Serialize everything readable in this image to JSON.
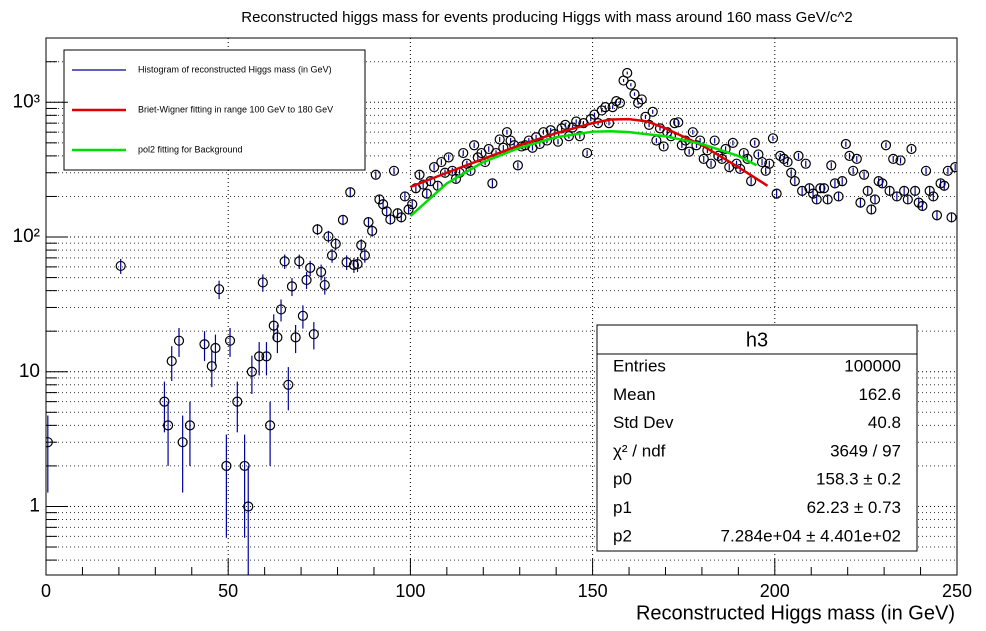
{
  "chart_data": {
    "type": "scatter",
    "title": "Reconstructed higgs mass for events producing Higgs with mass around 160 mass GeV/c^2",
    "x_label": "Reconstructed Higgs mass (in GeV)",
    "xlim": [
      0,
      250
    ],
    "xticks": [
      0,
      50,
      100,
      150,
      200,
      250
    ],
    "xminorticks": [
      10,
      20,
      30,
      40,
      60,
      70,
      80,
      90,
      110,
      120,
      130,
      140,
      160,
      170,
      180,
      190,
      210,
      220,
      230,
      240
    ],
    "ylim": [
      0.31,
      3000
    ],
    "ylog": true,
    "yticks": [
      1,
      10,
      {
        "value": 100,
        "label": "10²"
      },
      {
        "value": 1000,
        "label": "10³"
      }
    ],
    "yminorticks": [
      0.4,
      0.5,
      0.6,
      0.7,
      0.8,
      0.9,
      2,
      3,
      4,
      5,
      6,
      7,
      8,
      9,
      20,
      30,
      40,
      50,
      60,
      70,
      80,
      90,
      200,
      300,
      400,
      500,
      600,
      700,
      800,
      900,
      2000,
      3000
    ],
    "grid": true,
    "legend": "top-left",
    "series": [
      {
        "name": "Histogram of reconstructed Higgs mass (in GeV)",
        "type": "scatter",
        "color": "#0000a0",
        "x": [
          0.5,
          20.5,
          32.5,
          33.5,
          34.5,
          36.5,
          37.5,
          39.5,
          43.5,
          45.5,
          46.5,
          47.5,
          49.5,
          50.5,
          52.5,
          54.5,
          55.5,
          56.5,
          58.5,
          59.5,
          60.5,
          61.5,
          62.5,
          63.5,
          64.5,
          65.5,
          66.5,
          67.5,
          68.5,
          69.5,
          70.5,
          71.5,
          72.5,
          73.5,
          74.5,
          75.5,
          76.5,
          77.5,
          78.5,
          79.5,
          81.5,
          82.5,
          83.5,
          84.5,
          85.5,
          86.5,
          87.5,
          88.5,
          89.5,
          90.5,
          91.5,
          92.5,
          93.5,
          94.5,
          95.5,
          96.5,
          97.5,
          98.5,
          99.5,
          100.5,
          101.5,
          102.5,
          103.5,
          104.5,
          105.5,
          106.5,
          107.5,
          108.5,
          109.5,
          110.5,
          111.5,
          112.5,
          113.5,
          114.5,
          115.5,
          116.5,
          117.5,
          118.5,
          119.5,
          120.5,
          121.5,
          122.5,
          123.5,
          124.5,
          125.5,
          126.5,
          127.5,
          128.5,
          129.5,
          130.5,
          131.5,
          132.5,
          133.5,
          134.5,
          135.5,
          136.5,
          137.5,
          138.5,
          139.5,
          140.5,
          141.5,
          142.5,
          143.5,
          144.5,
          145.5,
          146.5,
          147.5,
          148.5,
          149.5,
          150.5,
          151.5,
          152.5,
          153.5,
          154.5,
          155.5,
          156.5,
          157.5,
          158.5,
          159.5,
          160.5,
          161.5,
          162.5,
          163.5,
          164.5,
          165.5,
          166.5,
          167.5,
          168.5,
          169.5,
          170.5,
          171.5,
          172.5,
          173.5,
          174.5,
          175.5,
          176.5,
          177.5,
          178.5,
          179.5,
          180.5,
          181.5,
          182.5,
          183.5,
          184.5,
          185.5,
          186.5,
          187.5,
          188.5,
          189.5,
          190.5,
          191.5,
          192.5,
          193.5,
          194.5,
          195.5,
          196.5,
          197.5,
          198.5,
          199.5,
          200.5,
          201.5,
          202.5,
          203.5,
          204.5,
          205.5,
          206.5,
          207.5,
          208.5,
          209.5,
          210.5,
          211.5,
          212.5,
          213.5,
          214.5,
          215.5,
          216.5,
          217.5,
          218.5,
          219.5,
          220.5,
          221.5,
          222.5,
          223.5,
          224.5,
          225.5,
          226.5,
          227.5,
          228.5,
          229.5,
          230.5,
          231.5,
          232.5,
          233.5,
          234.5,
          235.5,
          236.5,
          237.5,
          238.5,
          239.5,
          240.5,
          241.5,
          242.5,
          243.5,
          244.5,
          245.5,
          246.5,
          247.5,
          248.5,
          249.5
        ],
        "values": [
          3,
          61,
          6,
          4,
          12,
          17,
          3,
          4,
          16,
          11,
          15,
          41,
          2,
          17,
          6,
          2,
          1,
          10,
          13,
          46,
          13,
          4,
          22,
          18,
          29,
          66,
          8,
          43,
          18,
          66,
          26,
          48,
          59,
          19,
          114,
          55,
          44,
          101,
          73,
          89,
          134,
          65,
          215,
          62,
          63,
          87,
          73,
          129,
          111,
          290,
          190,
          175,
          155,
          135,
          310,
          150,
          140,
          200,
          160,
          175,
          230,
          290,
          245,
          210,
          260,
          330,
          240,
          360,
          300,
          390,
          310,
          270,
          300,
          420,
          350,
          310,
          480,
          390,
          420,
          360,
          450,
          250,
          420,
          530,
          460,
          600,
          520,
          480,
          340,
          470,
          480,
          520,
          460,
          550,
          490,
          600,
          520,
          620,
          580,
          510,
          640,
          680,
          560,
          650,
          720,
          560,
          700,
          420,
          750,
          810,
          700,
          870,
          920,
          700,
          920,
          1020,
          990,
          1450,
          1650,
          1350,
          1150,
          990,
          1050,
          780,
          680,
          850,
          520,
          640,
          470,
          600,
          560,
          700,
          710,
          480,
          520,
          430,
          600,
          480,
          520,
          380,
          440,
          350,
          520,
          400,
          380,
          450,
          330,
          500,
          350,
          320,
          420,
          380,
          260,
          500,
          410,
          360,
          310,
          350,
          540,
          210,
          400,
          380,
          360,
          300,
          260,
          400,
          220,
          350,
          230,
          210,
          190,
          230,
          230,
          190,
          340,
          250,
          200,
          260,
          490,
          400,
          310,
          380,
          180,
          290,
          220,
          160,
          190,
          260,
          250,
          480,
          220,
          380,
          200,
          370,
          220,
          190,
          450,
          220,
          180,
          170,
          310,
          220,
          200,
          145,
          250,
          240,
          310,
          140,
          330
        ]
      },
      {
        "name": "Briet-Wigner fitting in range 100 GeV to 180 GeV",
        "type": "line",
        "color": "#dd0000",
        "x": [
          100,
          110,
          120,
          130,
          140,
          150,
          155,
          160,
          165,
          170,
          180,
          190,
          198
        ],
        "values": [
          235,
          300,
          380,
          480,
          590,
          700,
          745,
          750,
          720,
          640,
          480,
          330,
          240
        ]
      },
      {
        "name": "pol2 fitting for Background",
        "type": "line",
        "color": "#00dd00",
        "x": [
          100,
          110,
          120,
          130,
          140,
          150,
          155,
          160,
          170,
          180,
          190,
          195
        ],
        "values": [
          143,
          250,
          360,
          460,
          550,
          605,
          610,
          600,
          560,
          490,
          400,
          341
        ]
      }
    ],
    "stats": {
      "title": "h3",
      "rows": [
        [
          "Entries",
          100000
        ],
        [
          "Mean",
          162.6
        ],
        [
          "Std Dev",
          40.8
        ],
        [
          "χ² / ndf",
          "3649 / 97"
        ],
        [
          "p0",
          "158.3 ± 0.2"
        ],
        [
          "p1",
          "62.23 ± 0.73"
        ],
        [
          "p2",
          "7.284e+04 ± 4.401e+02"
        ]
      ]
    }
  }
}
